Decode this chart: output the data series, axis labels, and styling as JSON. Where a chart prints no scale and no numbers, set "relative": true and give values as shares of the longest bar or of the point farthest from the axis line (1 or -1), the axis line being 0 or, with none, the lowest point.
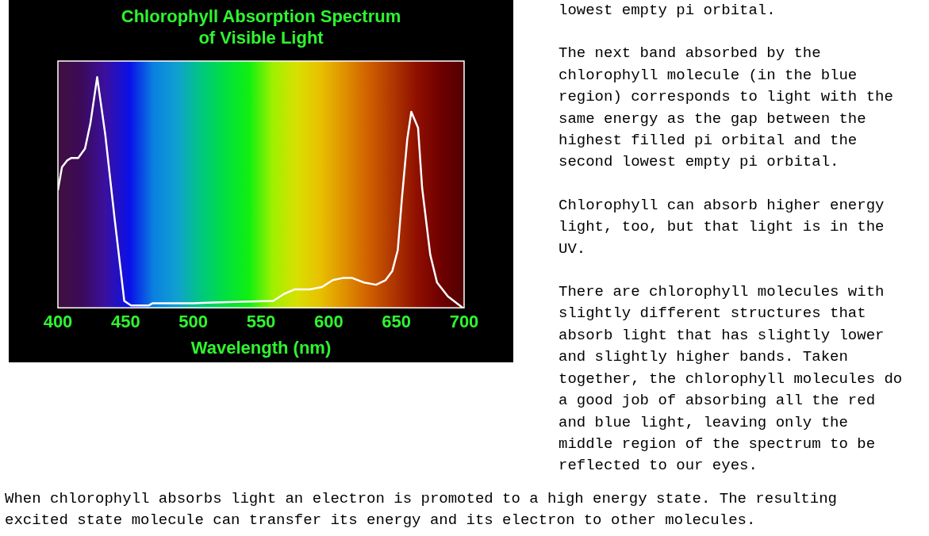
{
  "chart_data": {
    "type": "line",
    "title": [
      "Chlorophyll Absorption Spectrum",
      "of Visible Light"
    ],
    "xlabel": "Wavelength (nm)",
    "relative": true,
    "xlim": [
      400,
      700
    ],
    "xticks": [
      400,
      450,
      500,
      550,
      600,
      650,
      700
    ],
    "grid": false,
    "legend": false,
    "marker": "none",
    "line_style": "solid",
    "series": [
      {
        "color": "#ffffff",
        "x": [
          400,
          403,
          407,
          410,
          415,
          420,
          424,
          429,
          435,
          442,
          449,
          454,
          462,
          467,
          470,
          480,
          500,
          526,
          559,
          567,
          575,
          586,
          595,
          603,
          611,
          617,
          626,
          635,
          642,
          647,
          651,
          654,
          658,
          661,
          666,
          669,
          675,
          680,
          688,
          699
        ],
        "values": [
          0.51,
          0.61,
          0.64,
          0.65,
          0.65,
          0.69,
          0.8,
          1.0,
          0.75,
          0.38,
          0.03,
          0.01,
          0.01,
          0.01,
          0.02,
          0.02,
          0.02,
          0.025,
          0.03,
          0.06,
          0.08,
          0.08,
          0.09,
          0.12,
          0.13,
          0.13,
          0.11,
          0.1,
          0.12,
          0.16,
          0.25,
          0.47,
          0.73,
          0.85,
          0.78,
          0.52,
          0.23,
          0.11,
          0.05,
          0.0
        ]
      }
    ],
    "annotations": [
      "lowest empty pi orbital.",
      "The next band absorbed by the chlorophyll molecule (in the blue region) corresponds to light with the same energy as the gap between the highest filled pi orbital and the second lowest empty pi orbital.",
      "Chlorophyll can absorb higher energy light, too, but that light is in the UV.",
      "There are chlorophyll molecules with slightly different structures that absorb light that has slightly lower and slightly higher bands. Taken together, the chlorophyll molecules do a good job of absorbing all the red and blue light, leaving only the middle region of the spectrum to be reflected to our eyes.",
      "When chlorophyll absorbs light an electron is promoted to a high energy state. The resulting excited state molecule can transfer its energy and its electron to other molecules."
    ]
  }
}
